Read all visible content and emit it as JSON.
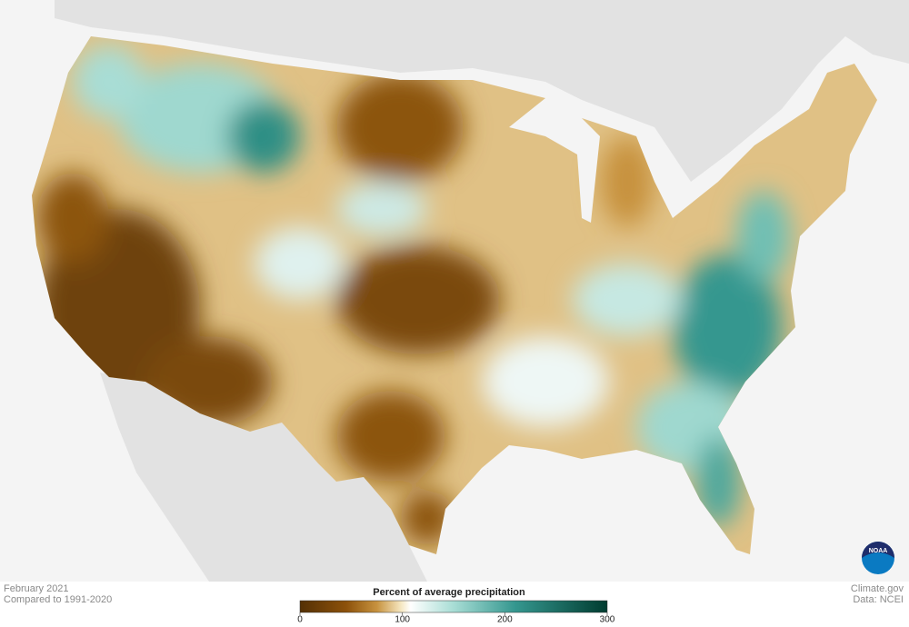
{
  "header": {
    "period": "February 2021",
    "baseline": "Compared to 1991-2020"
  },
  "legend": {
    "title": "Percent of average precipitation",
    "range": [
      0,
      300
    ],
    "ticks": [
      0,
      100,
      200,
      300
    ]
  },
  "credits": {
    "site": "Climate.gov",
    "source": "Data: NCEI",
    "logo": "NOAA"
  }
}
